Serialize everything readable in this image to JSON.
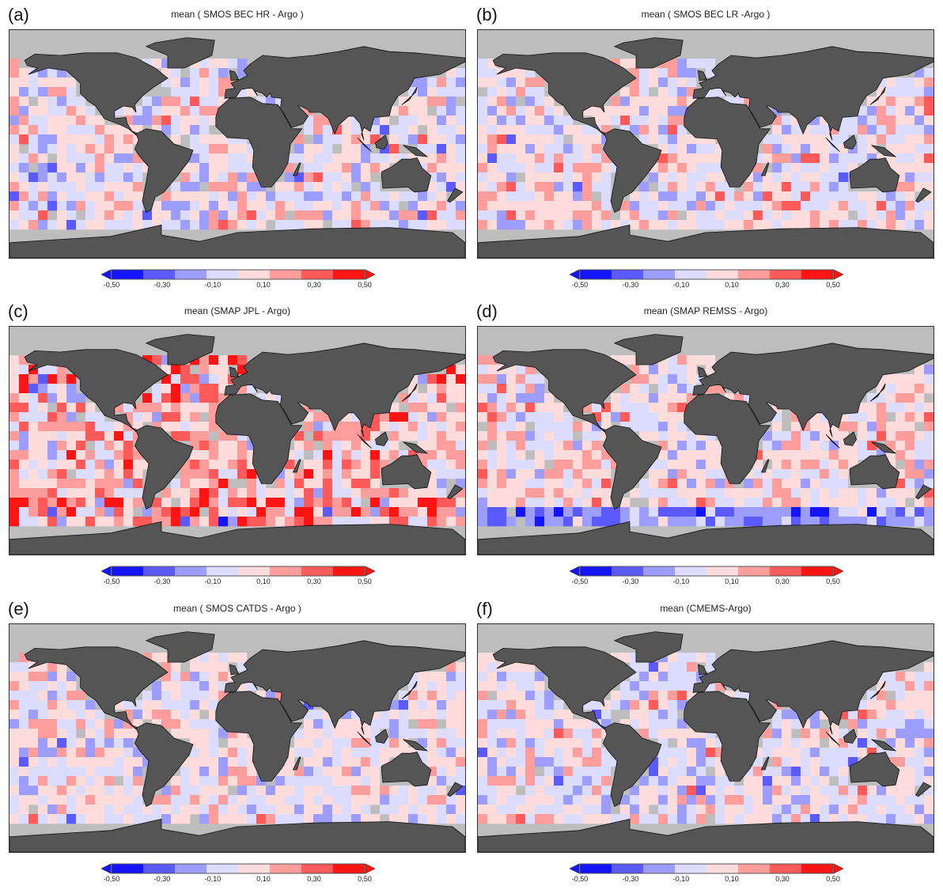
{
  "panels": [
    {
      "label": "(a)",
      "title": "mean ( SMOS BEC HR - Argo )"
    },
    {
      "label": "(b)",
      "title": "mean  ( SMOS BEC LR -Argo )"
    },
    {
      "label": "(c)",
      "title": "mean (SMAP JPL - Argo)"
    },
    {
      "label": "(d)",
      "title": "mean (SMAP REMSS - Argo)"
    },
    {
      "label": "(e)",
      "title": "mean ( SMOS CATDS - Argo )"
    },
    {
      "label": "(f)",
      "title": "mean (CMEMS-Argo)"
    }
  ],
  "colorbar": {
    "ticks": [
      "-0,50",
      "-0,30",
      "-0,10",
      "0,10",
      "0,30",
      "0,50"
    ],
    "tick_values": [
      -0.5,
      -0.3,
      -0.1,
      0.1,
      0.3,
      0.5
    ],
    "range": [
      -0.5,
      0.5
    ],
    "colors": [
      "#1414ff",
      "#5a5aff",
      "#9d9dff",
      "#dcdcff",
      "#ffdcdc",
      "#ff9d9d",
      "#ff5a5a",
      "#ff1414"
    ]
  },
  "map_colors": {
    "ocean_nodata": "#bdbdbd",
    "land": "#555555"
  }
}
